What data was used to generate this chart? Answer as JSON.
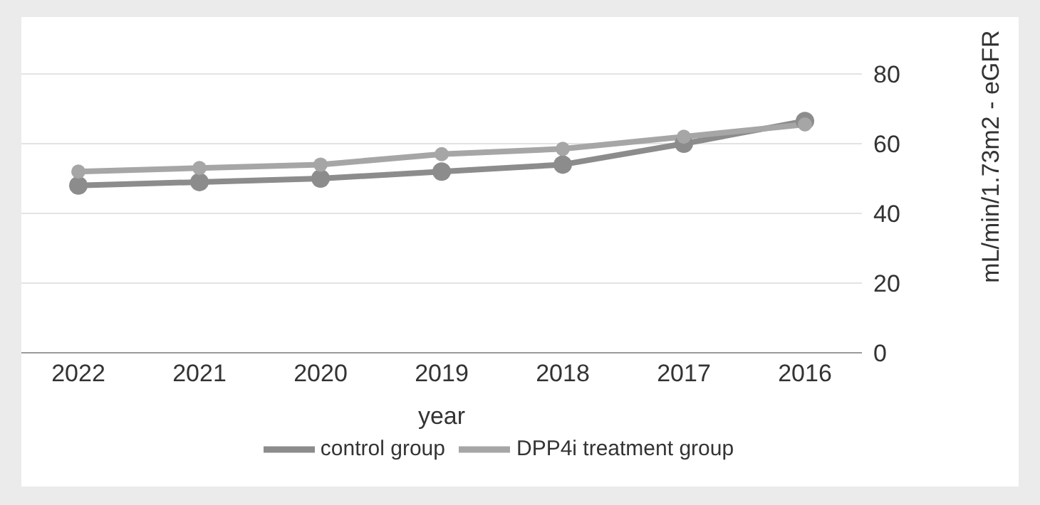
{
  "chart_data": {
    "type": "line",
    "xlabel": "year",
    "ylabel": "mL/min/1.73m2 - eGFR",
    "categories": [
      "2022",
      "2021",
      "2020",
      "2019",
      "2018",
      "2017",
      "2016"
    ],
    "series": [
      {
        "name": "control group",
        "color": "#8c8c8c",
        "values": [
          48,
          49,
          50,
          52,
          54,
          60,
          66.5
        ]
      },
      {
        "name": "DPP4i treatment group",
        "color": "#a6a6a6",
        "values": [
          52,
          53,
          54,
          57,
          58.5,
          62,
          65.5
        ]
      }
    ],
    "ylim": [
      0,
      80
    ],
    "yticks": [
      0,
      20,
      40,
      60,
      80
    ],
    "grid": "y",
    "legend": "bottom",
    "marker": "circle",
    "line_style": "solid"
  }
}
